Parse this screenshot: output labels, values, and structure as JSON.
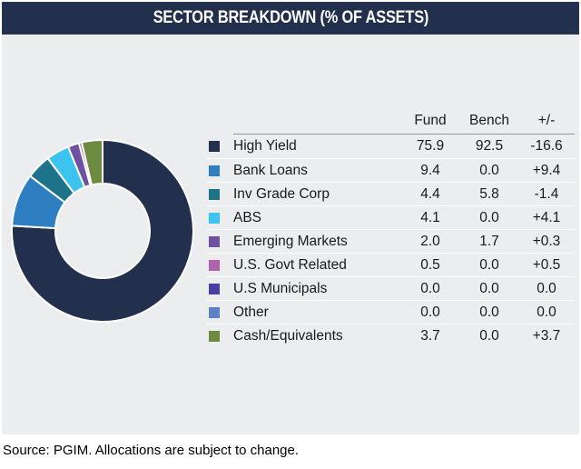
{
  "title_bar": {
    "title": "SECTOR BREAKDOWN (% OF ASSETS)",
    "bg_color": "#22304e",
    "text_color": "#ffffff"
  },
  "table": {
    "column_headers": [
      "Fund",
      "Bench",
      "+/-"
    ],
    "rows": [
      {
        "label": "High Yield",
        "color": "#22304e",
        "fund": "75.9",
        "bench": "92.5",
        "diff": "-16.6"
      },
      {
        "label": "Bank Loans",
        "color": "#2d7fc1",
        "fund": "9.4",
        "bench": "0.0",
        "diff": "+9.4"
      },
      {
        "label": "Inv Grade Corp",
        "color": "#1d7389",
        "fund": "4.4",
        "bench": "5.8",
        "diff": "-1.4"
      },
      {
        "label": "ABS",
        "color": "#3cc3ef",
        "fund": "4.1",
        "bench": "0.0",
        "diff": "+4.1"
      },
      {
        "label": "Emerging Markets",
        "color": "#6f51a1",
        "fund": "2.0",
        "bench": "1.7",
        "diff": "+0.3"
      },
      {
        "label": "U.S. Govt Related",
        "color": "#b162ad",
        "fund": "0.5",
        "bench": "0.0",
        "diff": "+0.5"
      },
      {
        "label": "U.S Municipals",
        "color": "#483fa5",
        "fund": "0.0",
        "bench": "0.0",
        "diff": "0.0"
      },
      {
        "label": "Other",
        "color": "#5c82c5",
        "fund": "0.0",
        "bench": "0.0",
        "diff": "0.0"
      },
      {
        "label": "Cash/Equivalents",
        "color": "#6c8b41",
        "fund": "3.7",
        "bench": "0.0",
        "diff": "+3.7"
      }
    ]
  },
  "chart_data": {
    "type": "pie",
    "donut": true,
    "title": "SECTOR BREAKDOWN (% OF ASSETS)",
    "categories": [
      "High Yield",
      "Bank Loans",
      "Inv Grade Corp",
      "ABS",
      "Emerging Markets",
      "U.S. Govt Related",
      "U.S Municipals",
      "Other",
      "Cash/Equivalents"
    ],
    "values": [
      75.9,
      9.4,
      4.4,
      4.1,
      2.0,
      0.5,
      0.0,
      0.0,
      3.7
    ],
    "series": [
      {
        "name": "Fund",
        "values": [
          75.9,
          9.4,
          4.4,
          4.1,
          2.0,
          0.5,
          0.0,
          0.0,
          3.7
        ]
      },
      {
        "name": "Bench",
        "values": [
          92.5,
          0.0,
          5.8,
          0.0,
          1.7,
          0.0,
          0.0,
          0.0,
          0.0
        ]
      },
      {
        "name": "+/-",
        "values": [
          -16.6,
          9.4,
          -1.4,
          4.1,
          0.3,
          0.5,
          0.0,
          0.0,
          3.7
        ]
      }
    ],
    "colors": [
      "#22304e",
      "#2d7fc1",
      "#1d7389",
      "#3cc3ef",
      "#6f51a1",
      "#b162ad",
      "#483fa5",
      "#5c82c5",
      "#6c8b41"
    ],
    "start_angle_deg": -90,
    "direction": "clockwise",
    "inner_radius_ratio": 0.52,
    "slice_gap_color": "#ffffff",
    "legend_position": "right-table",
    "background": "#ebedee"
  },
  "footer": {
    "source": "Source: PGIM. Allocations are subject to change."
  }
}
